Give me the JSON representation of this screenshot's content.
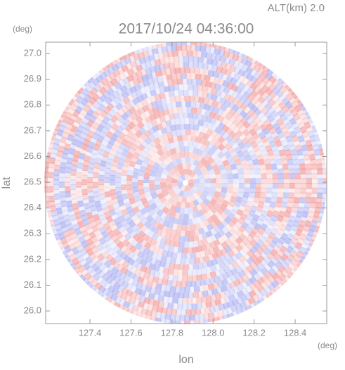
{
  "chart_data": {
    "type": "radar-ppi",
    "title": "2017/10/24 04:36:00",
    "subtitle": "ALT(km) 2.0",
    "y_unit": "(deg)",
    "x_unit": "(deg)",
    "x_label": "lon",
    "y_label": "lat",
    "xlim": [
      127.184,
      128.554
    ],
    "ylim": [
      25.951,
      27.044
    ],
    "xticks": [
      127.4,
      127.6,
      127.8,
      {
        "value": 128,
        "label": "128.0"
      },
      128.2,
      128.4
    ],
    "yticks": [
      {
        "value": 26,
        "label": "26.0"
      },
      26.1,
      26.2,
      26.3,
      26.4,
      26.5,
      26.6,
      26.7,
      26.8,
      26.9,
      {
        "value": 27,
        "label": "27.0"
      }
    ],
    "colors": [
      "#f29a9a",
      "#a9aef0"
    ]
  }
}
